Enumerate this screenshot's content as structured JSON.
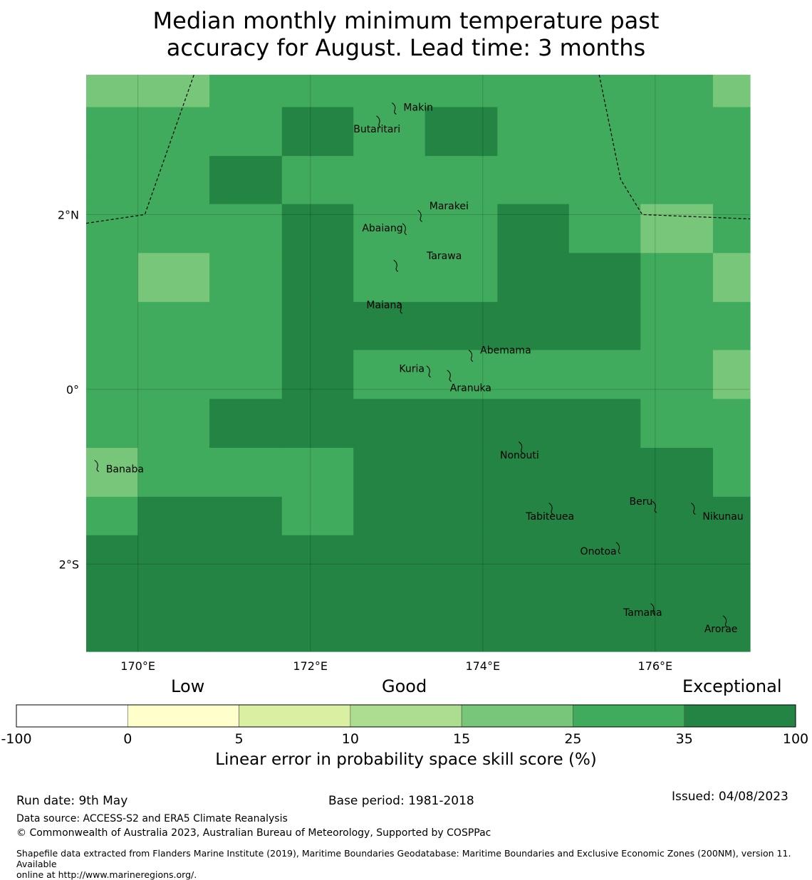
{
  "title_line1": "Median monthly minimum temperature past",
  "title_line2": "accuracy for August. Lead time: 3 months",
  "map": {
    "lon_range": [
      169.4,
      177.1
    ],
    "lat_range": [
      -3.0,
      3.6
    ],
    "x_ticks": [
      {
        "lon": 170,
        "label": "170°E"
      },
      {
        "lon": 172,
        "label": "172°E"
      },
      {
        "lon": 174,
        "label": "174°E"
      },
      {
        "lon": 176,
        "label": "176°E"
      }
    ],
    "y_ticks": [
      {
        "lat": 2,
        "label": "2°N"
      },
      {
        "lat": 0,
        "label": "0°"
      },
      {
        "lat": -2,
        "label": "2°S"
      }
    ],
    "grid_lon_edges": [
      169.4,
      170.0,
      170.83,
      171.67,
      172.5,
      173.33,
      174.17,
      175.0,
      175.83,
      176.67,
      177.1
    ],
    "grid_lat_edges": [
      3.6,
      3.23,
      2.67,
      2.12,
      1.56,
      1.0,
      0.45,
      -0.11,
      -0.67,
      -1.23,
      -1.67,
      -3.0
    ],
    "cell_classes": [
      [
        5,
        5,
        6,
        6,
        6,
        6,
        6,
        6,
        6,
        5
      ],
      [
        6,
        6,
        6,
        7,
        6,
        7,
        6,
        6,
        6,
        6
      ],
      [
        6,
        6,
        7,
        6,
        6,
        6,
        6,
        6,
        6,
        6
      ],
      [
        6,
        6,
        6,
        7,
        6,
        6,
        7,
        6,
        5,
        6
      ],
      [
        6,
        5,
        6,
        7,
        6,
        6,
        7,
        7,
        6,
        5
      ],
      [
        6,
        6,
        6,
        7,
        7,
        7,
        7,
        7,
        6,
        6
      ],
      [
        6,
        6,
        6,
        7,
        6,
        6,
        6,
        6,
        6,
        5
      ],
      [
        6,
        6,
        7,
        7,
        7,
        7,
        7,
        7,
        6,
        6
      ],
      [
        5,
        6,
        6,
        6,
        7,
        7,
        7,
        7,
        7,
        6
      ],
      [
        6,
        7,
        7,
        6,
        7,
        7,
        7,
        7,
        7,
        7
      ],
      [
        7,
        7,
        7,
        7,
        7,
        7,
        7,
        7,
        7,
        7
      ]
    ],
    "islands": [
      {
        "name": "Makin",
        "lon": 172.98,
        "lat": 3.23,
        "label_dx": 0.1,
        "label_dy": 0.0
      },
      {
        "name": "Butaritari",
        "lon": 172.8,
        "lat": 3.08,
        "label_dx": -0.3,
        "label_dy": -0.1
      },
      {
        "name": "Marakei",
        "lon": 173.28,
        "lat": 2.0,
        "label_dx": 0.1,
        "label_dy": 0.1
      },
      {
        "name": "Abaiang",
        "lon": 173.1,
        "lat": 1.85,
        "label_dx": -0.5,
        "label_dy": 0.0
      },
      {
        "name": "Tarawa",
        "lon": 173.0,
        "lat": 1.43,
        "label_dx": 0.35,
        "label_dy": 0.1
      },
      {
        "name": "Maiana",
        "lon": 173.05,
        "lat": 0.95,
        "label_dx": -0.4,
        "label_dy": 0.02
      },
      {
        "name": "Abemama",
        "lon": 173.87,
        "lat": 0.4,
        "label_dx": 0.1,
        "label_dy": 0.05
      },
      {
        "name": "Kuria",
        "lon": 173.38,
        "lat": 0.22,
        "label_dx": -0.35,
        "label_dy": 0.02
      },
      {
        "name": "Aranuka",
        "lon": 173.62,
        "lat": 0.17,
        "label_dx": 0.0,
        "label_dy": -0.15
      },
      {
        "name": "Nonouti",
        "lon": 174.45,
        "lat": -0.65,
        "label_dx": -0.25,
        "label_dy": -0.1
      },
      {
        "name": "Tabiteuea",
        "lon": 174.8,
        "lat": -1.35,
        "label_dx": -0.3,
        "label_dy": -0.1
      },
      {
        "name": "Banaba",
        "lon": 169.53,
        "lat": -0.86,
        "label_dx": 0.1,
        "label_dy": -0.05
      },
      {
        "name": "Beru",
        "lon": 176.0,
        "lat": -1.33,
        "label_dx": -0.3,
        "label_dy": 0.05
      },
      {
        "name": "Nikunau",
        "lon": 176.45,
        "lat": -1.35,
        "label_dx": 0.1,
        "label_dy": -0.1
      },
      {
        "name": "Onotoa",
        "lon": 175.58,
        "lat": -1.8,
        "label_dx": -0.45,
        "label_dy": -0.05
      },
      {
        "name": "Tamana",
        "lon": 175.98,
        "lat": -2.5,
        "label_dx": -0.35,
        "label_dy": -0.05
      },
      {
        "name": "Arorae",
        "lon": 176.82,
        "lat": -2.64,
        "label_dx": -0.25,
        "label_dy": -0.1
      }
    ],
    "eez_lines": [
      [
        [
          169.4,
          1.9
        ],
        [
          170.08,
          2.0
        ],
        [
          170.65,
          3.6
        ]
      ],
      [
        [
          175.35,
          3.6
        ],
        [
          175.6,
          2.4
        ],
        [
          175.85,
          2.0
        ],
        [
          177.1,
          1.95
        ]
      ]
    ]
  },
  "colorbar": {
    "headings": {
      "low": "Low",
      "good": "Good",
      "exceptional": "Exceptional"
    },
    "bins": [
      {
        "from": "-100",
        "to": "0",
        "color": "#ffffff"
      },
      {
        "from": "0",
        "to": "5",
        "color": "#ffffcc"
      },
      {
        "from": "5",
        "to": "10",
        "color": "#d9f0a3"
      },
      {
        "from": "10",
        "to": "15",
        "color": "#addd8e"
      },
      {
        "from": "15",
        "to": "25",
        "color": "#78c679"
      },
      {
        "from": "25",
        "to": "35",
        "color": "#41ab5d"
      },
      {
        "from": "35",
        "to": "100",
        "color": "#238443"
      }
    ],
    "tick_labels": [
      "-100",
      "0",
      "5",
      "10",
      "15",
      "25",
      "35",
      "100"
    ],
    "label": "Linear error in probability space skill score (%)"
  },
  "footer": {
    "run_date": "Run date: 9th May",
    "base_period": "Base period: 1981-2018",
    "issued": "Issued: 04/08/2023",
    "data_source": "Data source: ACCESS-S2 and ERA5 Climate Reanalysis",
    "copyright": "© Commonwealth of Australia 2023, Australian Bureau of Meteorology, Supported by COSPPac",
    "shapefile_line1": "Shapefile data extracted from Flanders Marine Institute (2019), Maritime Boundaries Geodatabase: Maritime Boundaries and Exclusive Economic Zones (200NM), version 11. Available",
    "shapefile_line2": "online at http://www.marineregions.org/."
  }
}
